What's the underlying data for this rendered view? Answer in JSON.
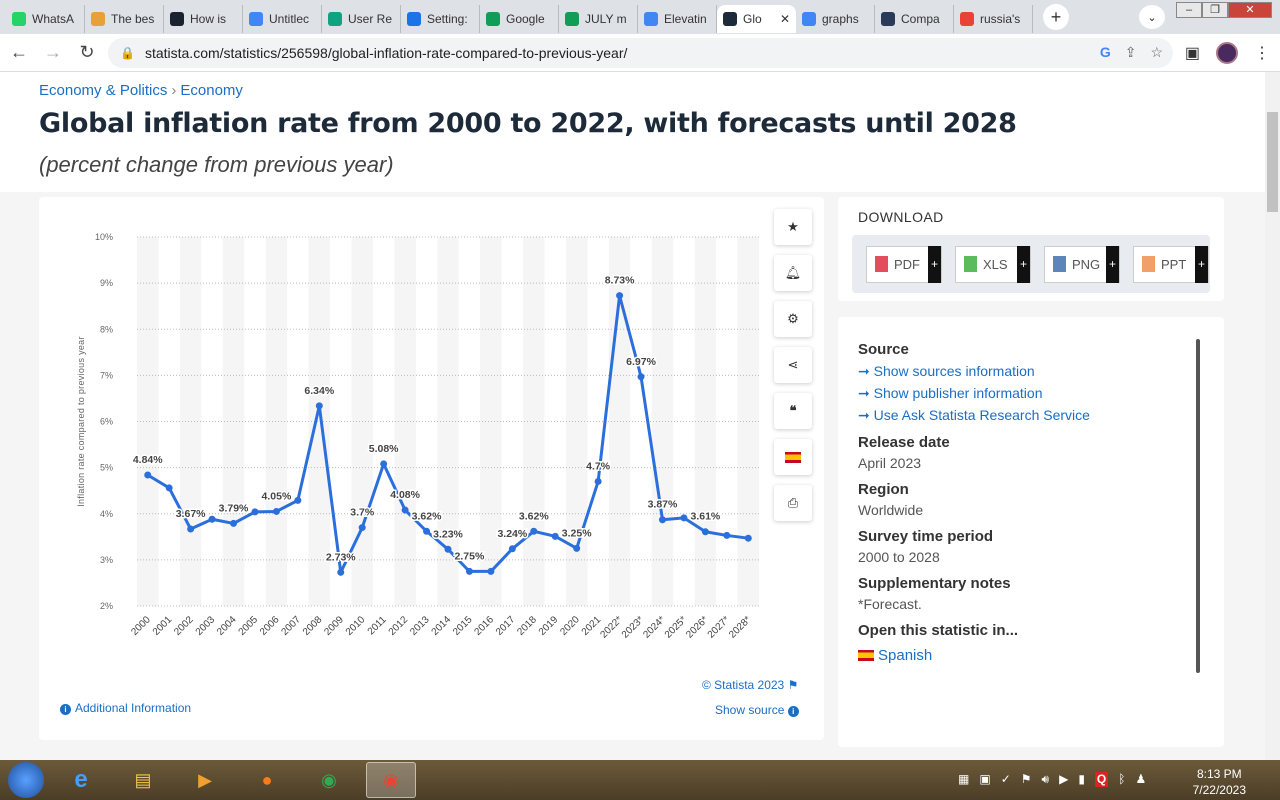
{
  "tabs": [
    {
      "label": "WhatsA",
      "color": "#25d366"
    },
    {
      "label": "The bes",
      "color": "#e8a13a"
    },
    {
      "label": "How is",
      "color": "#1a2230"
    },
    {
      "label": "Untitlec",
      "color": "#4285f4"
    },
    {
      "label": "User Re",
      "color": "#10a37f"
    },
    {
      "label": "Setting:",
      "color": "#1a73e8"
    },
    {
      "label": "Google",
      "color": "#0f9d58"
    },
    {
      "label": "JULY m",
      "color": "#0f9d58"
    },
    {
      "label": "Elevatin",
      "color": "#4285f4"
    },
    {
      "label": "Glo",
      "color": "#1d2a3a",
      "active": true
    },
    {
      "label": "graphs",
      "color": "#4285f4"
    },
    {
      "label": "Compa",
      "color": "#2a3a5a"
    },
    {
      "label": "russia's",
      "color": "#ea4335"
    }
  ],
  "url": "statista.com/statistics/256598/global-inflation-rate-compared-to-previous-year/",
  "breadcrumb": [
    "Economy & Politics",
    "Economy"
  ],
  "title": "Global inflation rate from 2000 to 2022, with forecasts until 2028",
  "subtitle": "(percent change from previous year)",
  "chart_data": {
    "type": "line",
    "ylabel": "Inflation rate compared to previous year",
    "ylim": [
      2,
      10
    ],
    "yticks": [
      "2%",
      "3%",
      "4%",
      "5%",
      "6%",
      "7%",
      "8%",
      "9%",
      "10%"
    ],
    "categories": [
      "2000",
      "2001",
      "2002",
      "2003",
      "2004",
      "2005",
      "2006",
      "2007",
      "2008",
      "2009",
      "2010",
      "2011",
      "2012",
      "2013",
      "2014",
      "2015",
      "2016",
      "2017",
      "2018",
      "2019",
      "2020",
      "2021",
      "2022*",
      "2023*",
      "2024*",
      "2025*",
      "2026*",
      "2027*",
      "2028*"
    ],
    "values": [
      4.84,
      4.56,
      3.67,
      3.88,
      3.79,
      4.04,
      4.05,
      4.29,
      6.34,
      2.73,
      3.7,
      5.08,
      4.08,
      3.62,
      3.23,
      2.75,
      2.75,
      3.24,
      3.62,
      3.51,
      3.25,
      4.7,
      8.73,
      6.97,
      3.87,
      3.91,
      3.61,
      3.53,
      3.47
    ],
    "labels": [
      "4.84%",
      "",
      "3.67%",
      "",
      "3.79%",
      "",
      "4.05%",
      "",
      "6.34%",
      "2.73%",
      "3.7%",
      "5.08%",
      "4.08%",
      "3.62%",
      "3.23%",
      "2.75%",
      "",
      "3.24%",
      "3.62%",
      "",
      "3.25%",
      "4.7%",
      "8.73%",
      "6.97%",
      "3.87%",
      "",
      "3.61%",
      "",
      ""
    ],
    "color": "#2a6fdb",
    "grid": true
  },
  "copyright": "© Statista 2023",
  "show_source": "Show source",
  "additional_info": "Additional Information",
  "download": {
    "title": "DOWNLOAD",
    "formats": [
      "PDF",
      "XLS",
      "PNG",
      "PPT"
    ],
    "plus": "+"
  },
  "info": {
    "source_label": "Source",
    "source_links": [
      "Show sources information",
      "Show publisher information",
      "Use Ask Statista Research Service"
    ],
    "release_label": "Release date",
    "release": "April 2023",
    "region_label": "Region",
    "region": "Worldwide",
    "survey_label": "Survey time period",
    "survey": "2000 to 2028",
    "notes_label": "Supplementary notes",
    "notes": "*Forecast.",
    "open_label": "Open this statistic in...",
    "open_lang": "Spanish"
  },
  "clock": {
    "time": "8:13 PM",
    "date": "7/22/2023"
  }
}
